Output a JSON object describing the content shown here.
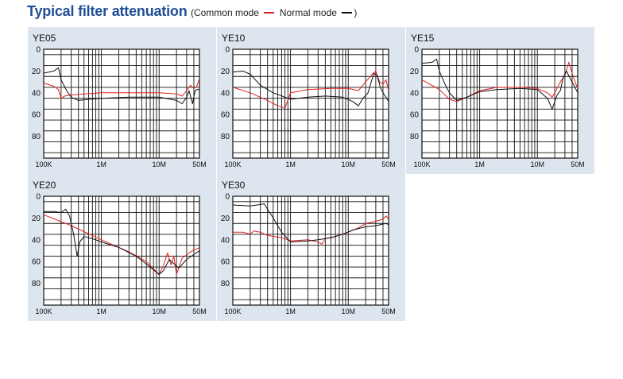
{
  "header": {
    "title": "Typical filter attenuation",
    "legend_prefix": "(Common mode",
    "legend_mid": "Normal mode",
    "legend_suffix": ")"
  },
  "colors": {
    "title": "#1f4e96",
    "common_mode": "#e02020",
    "normal_mode": "#111111",
    "panel_bg": "#dde6ee"
  },
  "chart_data": [
    {
      "type": "line",
      "title": "YE05",
      "x_scale": "log",
      "y_inverted": true,
      "ylim": [
        0,
        100
      ],
      "xlim": [
        100000,
        50000000
      ],
      "yticks": [
        "0",
        "20",
        "40",
        "60",
        "80"
      ],
      "xticks": [
        {
          "v": 100000,
          "label": "100K"
        },
        {
          "v": 1000000,
          "label": "1M"
        },
        {
          "v": 10000000,
          "label": "10M"
        },
        {
          "v": 50000000,
          "label": "50M"
        }
      ],
      "series": [
        {
          "name": "Common mode",
          "color": "#e02020",
          "points": [
            [
              100000,
              31
            ],
            [
              150000,
              34
            ],
            [
              180000,
              37
            ],
            [
              200000,
              45
            ],
            [
              230000,
              43
            ],
            [
              300000,
              42
            ],
            [
              1000000,
              40
            ],
            [
              10000000,
              40
            ],
            [
              20000000,
              41
            ],
            [
              25000000,
              43
            ],
            [
              30000000,
              38
            ],
            [
              35000000,
              33
            ],
            [
              40000000,
              36
            ],
            [
              45000000,
              34
            ],
            [
              50000000,
              27
            ]
          ]
        },
        {
          "name": "Normal mode",
          "color": "#111111",
          "points": [
            [
              100000,
              22
            ],
            [
              150000,
              20
            ],
            [
              180000,
              17
            ],
            [
              200000,
              28
            ],
            [
              250000,
              38
            ],
            [
              300000,
              44
            ],
            [
              400000,
              47
            ],
            [
              600000,
              46
            ],
            [
              1000000,
              45
            ],
            [
              3000000,
              44
            ],
            [
              10000000,
              44
            ],
            [
              20000000,
              47
            ],
            [
              25000000,
              50
            ],
            [
              30000000,
              44
            ],
            [
              33000000,
              38
            ],
            [
              38000000,
              50
            ],
            [
              42000000,
              38
            ],
            [
              45000000,
              37
            ],
            [
              50000000,
              37
            ]
          ]
        }
      ]
    },
    {
      "type": "line",
      "title": "YE10",
      "x_scale": "log",
      "y_inverted": true,
      "ylim": [
        0,
        100
      ],
      "xlim": [
        100000,
        50000000
      ],
      "yticks": [
        "0",
        "20",
        "40",
        "60",
        "80"
      ],
      "xticks": [
        {
          "v": 100000,
          "label": "100K"
        },
        {
          "v": 1000000,
          "label": "1M"
        },
        {
          "v": 10000000,
          "label": "10M"
        },
        {
          "v": 50000000,
          "label": "50M"
        }
      ],
      "series": [
        {
          "name": "Common mode",
          "color": "#e02020",
          "points": [
            [
              100000,
              35
            ],
            [
              200000,
              40
            ],
            [
              400000,
              47
            ],
            [
              600000,
              52
            ],
            [
              800000,
              54
            ],
            [
              1000000,
              40
            ],
            [
              2000000,
              37
            ],
            [
              5000000,
              36
            ],
            [
              10000000,
              36
            ],
            [
              15000000,
              38
            ],
            [
              20000000,
              30
            ],
            [
              25000000,
              24
            ],
            [
              30000000,
              20
            ],
            [
              35000000,
              30
            ],
            [
              40000000,
              32
            ],
            [
              45000000,
              28
            ],
            [
              50000000,
              38
            ]
          ]
        },
        {
          "name": "Normal mode",
          "color": "#111111",
          "points": [
            [
              100000,
              21
            ],
            [
              150000,
              20
            ],
            [
              200000,
              23
            ],
            [
              300000,
              33
            ],
            [
              500000,
              40
            ],
            [
              800000,
              44
            ],
            [
              1000000,
              46
            ],
            [
              2000000,
              44
            ],
            [
              4000000,
              43
            ],
            [
              8000000,
              44
            ],
            [
              12000000,
              48
            ],
            [
              15000000,
              52
            ],
            [
              18000000,
              45
            ],
            [
              22000000,
              40
            ],
            [
              25000000,
              30
            ],
            [
              28000000,
              22
            ],
            [
              32000000,
              25
            ],
            [
              36000000,
              35
            ],
            [
              40000000,
              40
            ],
            [
              45000000,
              44
            ],
            [
              50000000,
              48
            ]
          ]
        }
      ]
    },
    {
      "type": "line",
      "title": "YE15",
      "x_scale": "log",
      "y_inverted": true,
      "ylim": [
        0,
        100
      ],
      "xlim": [
        100000,
        50000000
      ],
      "yticks": [
        "0",
        "20",
        "40",
        "60",
        "80"
      ],
      "xticks": [
        {
          "v": 100000,
          "label": "100K"
        },
        {
          "v": 1000000,
          "label": "1M"
        },
        {
          "v": 10000000,
          "label": "10M"
        },
        {
          "v": 50000000,
          "label": "50M"
        }
      ],
      "series": [
        {
          "name": "Common mode",
          "color": "#e02020",
          "points": [
            [
              100000,
              28
            ],
            [
              200000,
              37
            ],
            [
              300000,
              46
            ],
            [
              400000,
              48
            ],
            [
              600000,
              44
            ],
            [
              1000000,
              38
            ],
            [
              2000000,
              35
            ],
            [
              5000000,
              35
            ],
            [
              10000000,
              36
            ],
            [
              15000000,
              40
            ],
            [
              18000000,
              44
            ],
            [
              20000000,
              40
            ],
            [
              25000000,
              30
            ],
            [
              30000000,
              24
            ],
            [
              35000000,
              12
            ],
            [
              40000000,
              22
            ],
            [
              45000000,
              30
            ],
            [
              50000000,
              36
            ]
          ]
        },
        {
          "name": "Normal mode",
          "color": "#111111",
          "points": [
            [
              100000,
              13
            ],
            [
              150000,
              12
            ],
            [
              180000,
              9
            ],
            [
              200000,
              20
            ],
            [
              250000,
              32
            ],
            [
              300000,
              40
            ],
            [
              400000,
              47
            ],
            [
              600000,
              44
            ],
            [
              1000000,
              39
            ],
            [
              2000000,
              37
            ],
            [
              5000000,
              36
            ],
            [
              10000000,
              37
            ],
            [
              15000000,
              45
            ],
            [
              18000000,
              55
            ],
            [
              22000000,
              42
            ],
            [
              25000000,
              38
            ],
            [
              28000000,
              26
            ],
            [
              32000000,
              20
            ],
            [
              38000000,
              28
            ],
            [
              43000000,
              33
            ],
            [
              50000000,
              40
            ]
          ]
        }
      ]
    },
    {
      "type": "line",
      "title": "YE20",
      "x_scale": "log",
      "y_inverted": true,
      "ylim": [
        0,
        100
      ],
      "xlim": [
        100000,
        50000000
      ],
      "yticks": [
        "0",
        "20",
        "40",
        "60",
        "80"
      ],
      "xticks": [
        {
          "v": 100000,
          "label": "100K"
        },
        {
          "v": 1000000,
          "label": "1M"
        },
        {
          "v": 10000000,
          "label": "10M"
        },
        {
          "v": 50000000,
          "label": "50M"
        }
      ],
      "series": [
        {
          "name": "Common mode",
          "color": "#e02020",
          "points": [
            [
              100000,
              17
            ],
            [
              300000,
              27
            ],
            [
              1000000,
              40
            ],
            [
              3000000,
              51
            ],
            [
              6000000,
              60
            ],
            [
              10000000,
              72
            ],
            [
              12000000,
              63
            ],
            [
              14000000,
              52
            ],
            [
              16000000,
              63
            ],
            [
              18000000,
              55
            ],
            [
              20000000,
              72
            ],
            [
              25000000,
              57
            ],
            [
              35000000,
              51
            ],
            [
              50000000,
              47
            ]
          ]
        },
        {
          "name": "Normal mode",
          "color": "#111111",
          "points": [
            [
              100000,
              14
            ],
            [
              150000,
              14
            ],
            [
              200000,
              15
            ],
            [
              240000,
              12
            ],
            [
              280000,
              18
            ],
            [
              330000,
              35
            ],
            [
              380000,
              55
            ],
            [
              420000,
              42
            ],
            [
              500000,
              37
            ],
            [
              700000,
              39
            ],
            [
              1000000,
              42
            ],
            [
              2000000,
              47
            ],
            [
              4000000,
              55
            ],
            [
              7000000,
              65
            ],
            [
              10000000,
              72
            ],
            [
              12000000,
              68
            ],
            [
              15000000,
              58
            ],
            [
              18000000,
              62
            ],
            [
              22000000,
              66
            ],
            [
              30000000,
              58
            ],
            [
              50000000,
              50
            ]
          ]
        }
      ]
    },
    {
      "type": "line",
      "title": "YE30",
      "x_scale": "log",
      "y_inverted": true,
      "ylim": [
        0,
        100
      ],
      "xlim": [
        100000,
        50000000
      ],
      "yticks": [
        "0",
        "20",
        "40",
        "60",
        "80"
      ],
      "xticks": [
        {
          "v": 100000,
          "label": "100K"
        },
        {
          "v": 1000000,
          "label": "1M"
        },
        {
          "v": 10000000,
          "label": "10M"
        },
        {
          "v": 50000000,
          "label": "50M"
        }
      ],
      "series": [
        {
          "name": "Common mode",
          "color": "#e02020",
          "points": [
            [
              100000,
              33
            ],
            [
              150000,
              33
            ],
            [
              200000,
              35
            ],
            [
              230000,
              32
            ],
            [
              300000,
              33
            ],
            [
              400000,
              36
            ],
            [
              700000,
              38
            ],
            [
              1000000,
              41
            ],
            [
              2000000,
              40
            ],
            [
              3000000,
              42
            ],
            [
              3500000,
              44
            ],
            [
              4000000,
              39
            ],
            [
              6000000,
              37
            ],
            [
              10000000,
              33
            ],
            [
              15000000,
              29
            ],
            [
              20000000,
              25
            ],
            [
              30000000,
              23
            ],
            [
              40000000,
              21
            ],
            [
              45000000,
              18
            ],
            [
              50000000,
              21
            ]
          ]
        },
        {
          "name": "Normal mode",
          "color": "#111111",
          "points": [
            [
              100000,
              8
            ],
            [
              200000,
              9
            ],
            [
              350000,
              7
            ],
            [
              500000,
              20
            ],
            [
              700000,
              33
            ],
            [
              1000000,
              42
            ],
            [
              2000000,
              41
            ],
            [
              3000000,
              40
            ],
            [
              5000000,
              38
            ],
            [
              8000000,
              35
            ],
            [
              12000000,
              31
            ],
            [
              20000000,
              28
            ],
            [
              30000000,
              27
            ],
            [
              45000000,
              25
            ],
            [
              50000000,
              26
            ]
          ]
        }
      ]
    }
  ]
}
